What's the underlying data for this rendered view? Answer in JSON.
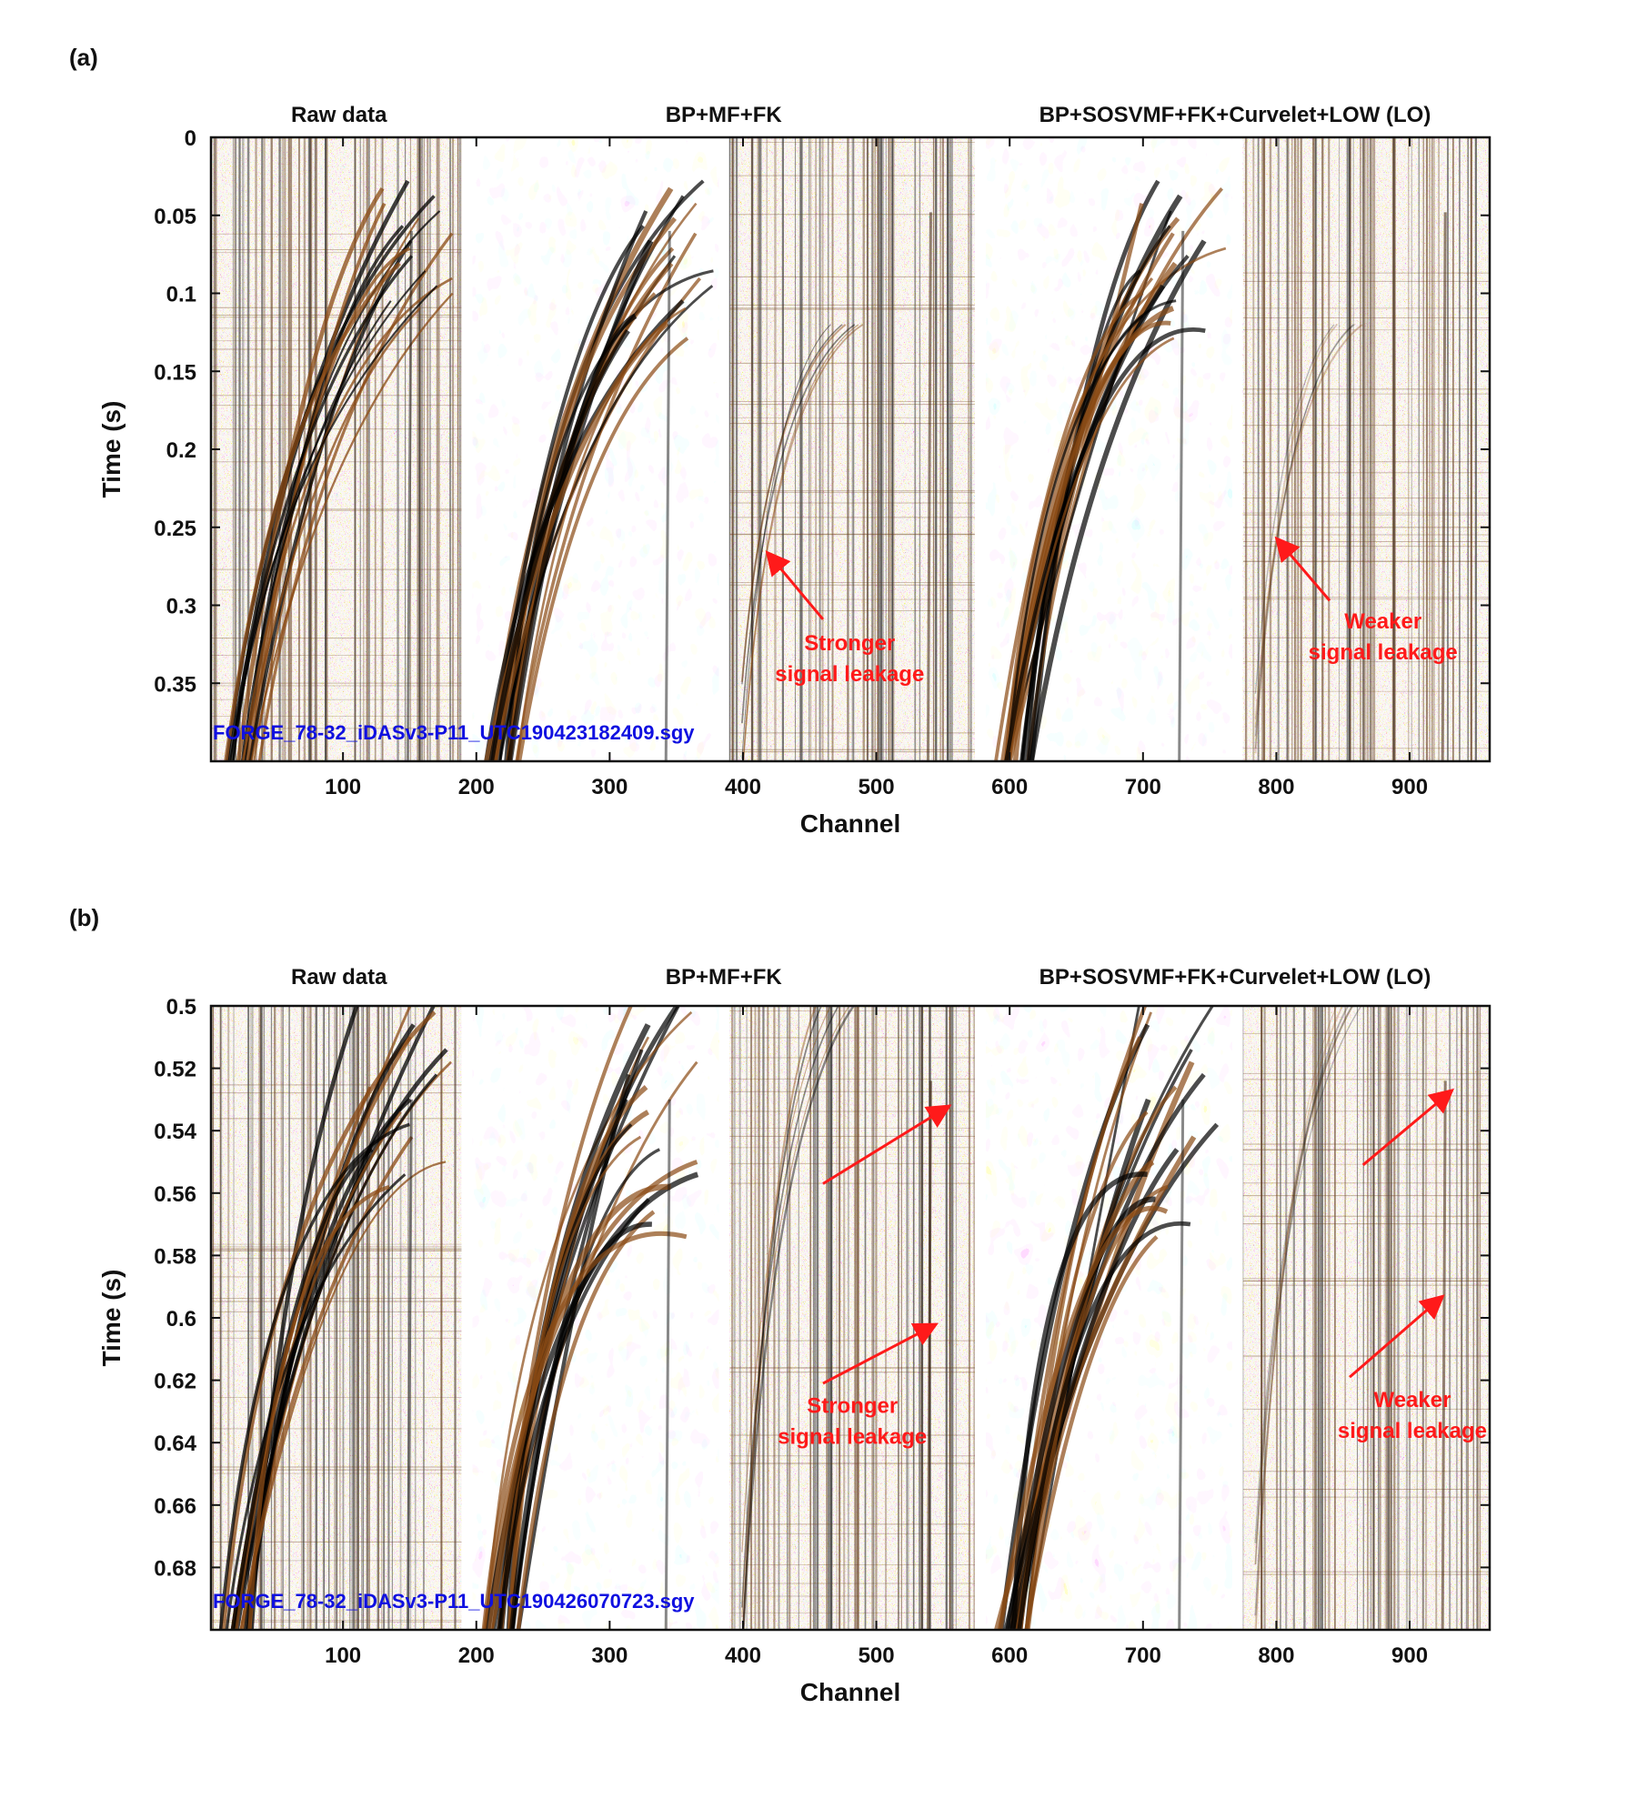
{
  "colors": {
    "axis": "#111111",
    "annotation": "#ff1a1a",
    "filename": "#1010e0",
    "seismic_pos": "#8a4a14",
    "seismic_neg": "#000000",
    "background_noise": "#e9dccb"
  },
  "chart_data": [
    {
      "type": "heatmap",
      "panel_label": "(a)",
      "section_titles": [
        "Raw data",
        "BP+MF+FK",
        "BP+SOSVMF+FK+Curvelet+LOW (LO)"
      ],
      "xlabel": "Channel",
      "ylabel": "Time (s)",
      "xlim": [
        1,
        960
      ],
      "ylim": [
        0,
        0.4
      ],
      "y_reversed": true,
      "xticks": [
        100,
        200,
        300,
        400,
        500,
        600,
        700,
        800,
        900
      ],
      "yticks": [
        0,
        0.05,
        0.1,
        0.15,
        0.2,
        0.25,
        0.3,
        0.35
      ],
      "ytick_labels": [
        "0",
        "0.05",
        "0.1",
        "0.15",
        "0.2",
        "0.25",
        "0.3",
        "0.35"
      ],
      "section_boundaries": [
        193,
        386,
        578,
        771
      ],
      "filename": "FORGE_78-32_iDASv3-P11_UTC190423182409.sgy",
      "annotations": [
        {
          "text_lines": [
            "Stronger",
            "signal leakage"
          ],
          "text_x": 480,
          "text_y": 0.322,
          "arrow_from": [
            460,
            0.309
          ],
          "arrow_to": [
            418,
            0.266
          ]
        },
        {
          "text_lines": [
            "Weaker",
            "signal leakage"
          ],
          "text_x": 880,
          "text_y": 0.308,
          "arrow_from": [
            840,
            0.297
          ],
          "arrow_to": [
            800,
            0.257
          ]
        }
      ]
    },
    {
      "type": "heatmap",
      "panel_label": "(b)",
      "section_titles": [
        "Raw data",
        "BP+MF+FK",
        "BP+SOSVMF+FK+Curvelet+LOW (LO)"
      ],
      "xlabel": "Channel",
      "ylabel": "Time (s)",
      "xlim": [
        1,
        960
      ],
      "ylim": [
        0.5,
        0.7
      ],
      "y_reversed": true,
      "xticks": [
        100,
        200,
        300,
        400,
        500,
        600,
        700,
        800,
        900
      ],
      "yticks": [
        0.5,
        0.52,
        0.54,
        0.56,
        0.58,
        0.6,
        0.62,
        0.64,
        0.66,
        0.68
      ],
      "ytick_labels": [
        "0.5",
        "0.52",
        "0.54",
        "0.56",
        "0.58",
        "0.6",
        "0.62",
        "0.64",
        "0.66",
        "0.68"
      ],
      "section_boundaries": [
        193,
        386,
        578,
        771
      ],
      "filename": "FORGE_78-32_iDASv3-P11_UTC190426070723.sgy",
      "annotations": [
        {
          "text_lines": [
            "Stronger",
            "signal leakage"
          ],
          "text_x": 482,
          "text_y": 0.627,
          "arrow_from": [
            460,
            0.621
          ],
          "arrow_to": [
            545,
            0.602
          ]
        },
        {
          "text_lines": [],
          "arrow_from": [
            460,
            0.557
          ],
          "arrow_to": [
            555,
            0.532
          ]
        },
        {
          "text_lines": [
            "Weaker",
            "signal leakage"
          ],
          "text_x": 902,
          "text_y": 0.625,
          "arrow_from": [
            855,
            0.619
          ],
          "arrow_to": [
            925,
            0.593
          ]
        },
        {
          "text_lines": [],
          "arrow_from": [
            865,
            0.551
          ],
          "arrow_to": [
            932,
            0.527
          ]
        }
      ]
    }
  ]
}
